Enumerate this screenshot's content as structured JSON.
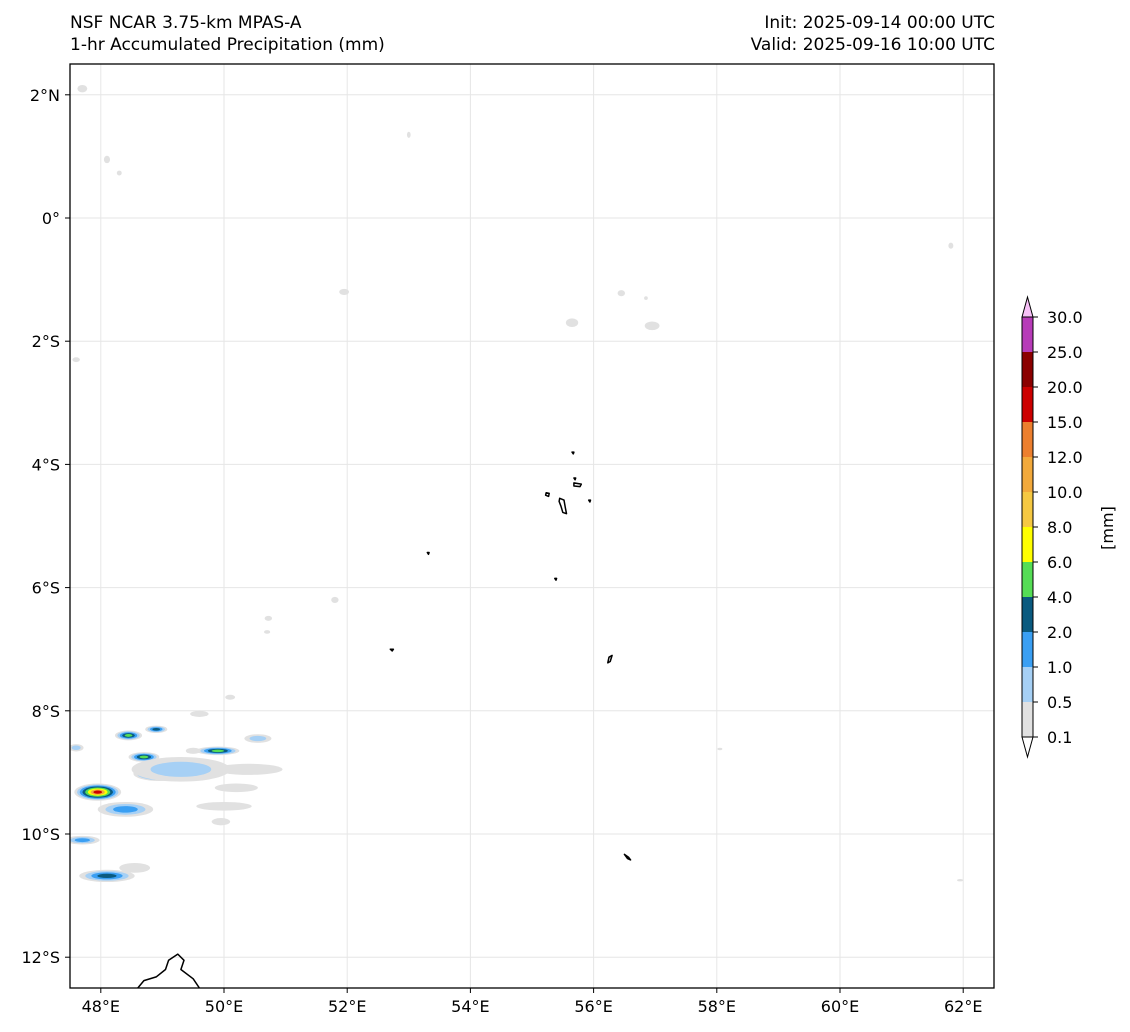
{
  "header": {
    "title_line1": "NSF NCAR 3.75-km MPAS-A",
    "title_line2": "1-hr Accumulated Precipitation (mm)",
    "init": "Init: 2025-09-14 00:00 UTC",
    "valid": "Valid: 2025-09-16 10:00 UTC"
  },
  "map": {
    "lon_range": [
      47.5,
      62.5
    ],
    "lat_range": [
      -12.5,
      2.5
    ],
    "gridlines": true,
    "lon_ticks": [
      {
        "value": 48,
        "label": "48°E"
      },
      {
        "value": 50,
        "label": "50°E"
      },
      {
        "value": 52,
        "label": "52°E"
      },
      {
        "value": 54,
        "label": "54°E"
      },
      {
        "value": 56,
        "label": "56°E"
      },
      {
        "value": 58,
        "label": "58°E"
      },
      {
        "value": 60,
        "label": "60°E"
      },
      {
        "value": 62,
        "label": "62°E"
      }
    ],
    "lat_ticks": [
      {
        "value": 2,
        "label": "2°N"
      },
      {
        "value": 0,
        "label": "0°"
      },
      {
        "value": -2,
        "label": "2°S"
      },
      {
        "value": -4,
        "label": "4°S"
      },
      {
        "value": -6,
        "label": "6°S"
      },
      {
        "value": -8,
        "label": "8°S"
      },
      {
        "value": -10,
        "label": "10°S"
      },
      {
        "value": -12,
        "label": "12°S"
      }
    ],
    "islands": [
      {
        "name": "mahe",
        "pts": [
          [
            55.45,
            -4.55
          ],
          [
            55.52,
            -4.58
          ],
          [
            55.54,
            -4.7
          ],
          [
            55.56,
            -4.8
          ],
          [
            55.5,
            -4.78
          ],
          [
            55.47,
            -4.68
          ],
          [
            55.44,
            -4.6
          ]
        ]
      },
      {
        "name": "praslin",
        "pts": [
          [
            55.68,
            -4.3
          ],
          [
            55.8,
            -4.32
          ],
          [
            55.78,
            -4.36
          ],
          [
            55.68,
            -4.35
          ]
        ]
      },
      {
        "name": "silhouette",
        "pts": [
          [
            55.23,
            -4.46
          ],
          [
            55.28,
            -4.47
          ],
          [
            55.27,
            -4.52
          ],
          [
            55.22,
            -4.5
          ]
        ]
      },
      {
        "name": "denis",
        "pts": [
          [
            55.65,
            -3.8
          ],
          [
            55.68,
            -3.8
          ],
          [
            55.67,
            -3.83
          ]
        ]
      },
      {
        "name": "bird",
        "pts": [
          [
            55.68,
            -4.22
          ],
          [
            55.71,
            -4.22
          ],
          [
            55.7,
            -4.25
          ]
        ]
      },
      {
        "name": "fregate",
        "pts": [
          [
            55.92,
            -4.58
          ],
          [
            55.95,
            -4.58
          ],
          [
            55.94,
            -4.61
          ]
        ]
      },
      {
        "name": "platte",
        "pts": [
          [
            55.37,
            -5.85
          ],
          [
            55.4,
            -5.85
          ],
          [
            55.39,
            -5.88
          ]
        ]
      },
      {
        "name": "coetivy",
        "pts": [
          [
            56.25,
            -7.13
          ],
          [
            56.3,
            -7.1
          ],
          [
            56.27,
            -7.2
          ],
          [
            56.23,
            -7.22
          ]
        ]
      },
      {
        "name": "amirante",
        "pts": [
          [
            53.3,
            -5.43
          ],
          [
            53.33,
            -5.43
          ],
          [
            53.32,
            -5.46
          ]
        ]
      },
      {
        "name": "desroches",
        "pts": [
          [
            52.7,
            -7.0
          ],
          [
            52.75,
            -7.0
          ],
          [
            52.73,
            -7.03
          ]
        ]
      },
      {
        "name": "agalega",
        "pts": [
          [
            56.5,
            -10.33
          ],
          [
            56.57,
            -10.38
          ],
          [
            56.6,
            -10.42
          ],
          [
            56.55,
            -10.4
          ]
        ]
      },
      {
        "name": "madagascar_north",
        "pts": [
          [
            48.6,
            -12.5
          ],
          [
            48.7,
            -12.38
          ],
          [
            48.9,
            -12.32
          ],
          [
            49.05,
            -12.2
          ],
          [
            49.1,
            -12.05
          ],
          [
            49.25,
            -11.95
          ],
          [
            49.35,
            -12.05
          ],
          [
            49.3,
            -12.2
          ],
          [
            49.5,
            -12.35
          ],
          [
            49.6,
            -12.5
          ]
        ]
      }
    ],
    "precip_blobs": [
      {
        "lon": 47.95,
        "lat": -9.32,
        "rx": 0.38,
        "ry": 0.14,
        "levels": [
          "#e1e1e1",
          "#a6d0f5",
          "#3a9ff3",
          "#0a5a7f",
          "#55dd55",
          "#ffff00",
          "#f2a93b",
          "#cc0000"
        ]
      },
      {
        "lon": 48.95,
        "lat": -9.02,
        "rx": 0.42,
        "ry": 0.12,
        "levels": [
          "#e1e1e1",
          "#a6d0f5",
          "#3a9ff3",
          "#0a5a7f",
          "#55dd55",
          "#ffff00",
          "#f2a93b"
        ]
      },
      {
        "lon": 48.7,
        "lat": -8.75,
        "rx": 0.25,
        "ry": 0.08,
        "levels": [
          "#e1e1e1",
          "#a6d0f5",
          "#3a9ff3",
          "#0a5a7f",
          "#55dd55"
        ]
      },
      {
        "lon": 48.45,
        "lat": -8.4,
        "rx": 0.22,
        "ry": 0.08,
        "levels": [
          "#e1e1e1",
          "#a6d0f5",
          "#3a9ff3",
          "#0a5a7f",
          "#55dd55"
        ]
      },
      {
        "lon": 48.9,
        "lat": -8.3,
        "rx": 0.18,
        "ry": 0.06,
        "levels": [
          "#e1e1e1",
          "#a6d0f5",
          "#3a9ff3",
          "#0a5a7f"
        ]
      },
      {
        "lon": 49.9,
        "lat": -8.65,
        "rx": 0.35,
        "ry": 0.07,
        "levels": [
          "#e1e1e1",
          "#a6d0f5",
          "#3a9ff3",
          "#0a5a7f",
          "#55dd55"
        ]
      },
      {
        "lon": 50.55,
        "lat": -8.45,
        "rx": 0.22,
        "ry": 0.07,
        "levels": [
          "#e1e1e1",
          "#a6d0f5"
        ]
      },
      {
        "lon": 48.1,
        "lat": -10.68,
        "rx": 0.45,
        "ry": 0.1,
        "levels": [
          "#e1e1e1",
          "#a6d0f5",
          "#3a9ff3",
          "#0a5a7f"
        ]
      },
      {
        "lon": 47.7,
        "lat": -10.1,
        "rx": 0.28,
        "ry": 0.07,
        "levels": [
          "#e1e1e1",
          "#a6d0f5",
          "#3a9ff3"
        ]
      },
      {
        "lon": 48.4,
        "lat": -9.6,
        "rx": 0.45,
        "ry": 0.12,
        "levels": [
          "#e1e1e1",
          "#a6d0f5",
          "#3a9ff3"
        ]
      },
      {
        "lon": 49.3,
        "lat": -8.95,
        "rx": 0.8,
        "ry": 0.2,
        "levels": [
          "#e1e1e1",
          "#a6d0f5"
        ]
      },
      {
        "lon": 50.4,
        "lat": -8.95,
        "rx": 0.55,
        "ry": 0.09,
        "levels": [
          "#e1e1e1"
        ]
      },
      {
        "lon": 50.0,
        "lat": -9.55,
        "rx": 0.45,
        "ry": 0.07,
        "levels": [
          "#e1e1e1"
        ]
      },
      {
        "lon": 49.95,
        "lat": -9.8,
        "rx": 0.15,
        "ry": 0.06,
        "levels": [
          "#e1e1e1"
        ]
      },
      {
        "lon": 50.2,
        "lat": -9.25,
        "rx": 0.35,
        "ry": 0.07,
        "levels": [
          "#e1e1e1"
        ]
      },
      {
        "lon": 48.55,
        "lat": -10.55,
        "rx": 0.25,
        "ry": 0.08,
        "levels": [
          "#e1e1e1"
        ]
      },
      {
        "lon": 47.6,
        "lat": -8.6,
        "rx": 0.12,
        "ry": 0.06,
        "levels": [
          "#e1e1e1",
          "#a6d0f5"
        ]
      },
      {
        "lon": 49.6,
        "lat": -8.05,
        "rx": 0.15,
        "ry": 0.05,
        "levels": [
          "#e1e1e1"
        ]
      },
      {
        "lon": 49.5,
        "lat": -8.65,
        "rx": 0.12,
        "ry": 0.05,
        "levels": [
          "#e1e1e1"
        ]
      },
      {
        "lon": 47.7,
        "lat": 2.1,
        "rx": 0.08,
        "ry": 0.06,
        "levels": [
          "#e1e1e1"
        ]
      },
      {
        "lon": 48.1,
        "lat": 0.95,
        "rx": 0.05,
        "ry": 0.06,
        "levels": [
          "#e1e1e1"
        ]
      },
      {
        "lon": 48.3,
        "lat": 0.73,
        "rx": 0.04,
        "ry": 0.04,
        "levels": [
          "#e1e1e1"
        ]
      },
      {
        "lon": 53.0,
        "lat": 1.35,
        "rx": 0.03,
        "ry": 0.05,
        "levels": [
          "#e1e1e1"
        ]
      },
      {
        "lon": 51.95,
        "lat": -1.2,
        "rx": 0.08,
        "ry": 0.05,
        "levels": [
          "#e1e1e1"
        ]
      },
      {
        "lon": 55.65,
        "lat": -1.7,
        "rx": 0.1,
        "ry": 0.07,
        "levels": [
          "#e1e1e1"
        ]
      },
      {
        "lon": 56.45,
        "lat": -1.22,
        "rx": 0.06,
        "ry": 0.05,
        "levels": [
          "#e1e1e1"
        ]
      },
      {
        "lon": 56.95,
        "lat": -1.75,
        "rx": 0.12,
        "ry": 0.07,
        "levels": [
          "#e1e1e1"
        ]
      },
      {
        "lon": 56.85,
        "lat": -1.3,
        "rx": 0.03,
        "ry": 0.03,
        "levels": [
          "#e1e1e1"
        ]
      },
      {
        "lon": 51.8,
        "lat": -6.2,
        "rx": 0.06,
        "ry": 0.05,
        "levels": [
          "#e1e1e1"
        ]
      },
      {
        "lon": 50.72,
        "lat": -6.5,
        "rx": 0.06,
        "ry": 0.04,
        "levels": [
          "#e1e1e1"
        ]
      },
      {
        "lon": 50.7,
        "lat": -6.72,
        "rx": 0.05,
        "ry": 0.03,
        "levels": [
          "#e1e1e1"
        ]
      },
      {
        "lon": 50.1,
        "lat": -7.78,
        "rx": 0.08,
        "ry": 0.04,
        "levels": [
          "#e1e1e1"
        ]
      },
      {
        "lon": 61.8,
        "lat": -0.45,
        "rx": 0.04,
        "ry": 0.05,
        "levels": [
          "#e1e1e1"
        ]
      },
      {
        "lon": 58.05,
        "lat": -8.62,
        "rx": 0.04,
        "ry": 0.02,
        "levels": [
          "#e1e1e1"
        ]
      },
      {
        "lon": 61.95,
        "lat": -10.75,
        "rx": 0.05,
        "ry": 0.02,
        "levels": [
          "#e1e1e1"
        ]
      },
      {
        "lon": 47.6,
        "lat": -2.3,
        "rx": 0.06,
        "ry": 0.04,
        "levels": [
          "#e1e1e1"
        ]
      }
    ]
  },
  "colorbar": {
    "unit_label": "[mm]",
    "levels": [
      "0.1",
      "0.5",
      "1.0",
      "2.0",
      "4.0",
      "6.0",
      "8.0",
      "10.0",
      "12.0",
      "15.0",
      "20.0",
      "25.0",
      "30.0"
    ],
    "colors": [
      "#e1e1e1",
      "#a6d0f5",
      "#3a9ff3",
      "#0a5a7f",
      "#55dd55",
      "#ffff00",
      "#f5c842",
      "#f2a93b",
      "#ec7f2e",
      "#cc0000",
      "#8b0000",
      "#b73bb8",
      "#f7c0f7"
    ],
    "under_color": "#ffffff",
    "over_color": "#f7c0f7"
  }
}
